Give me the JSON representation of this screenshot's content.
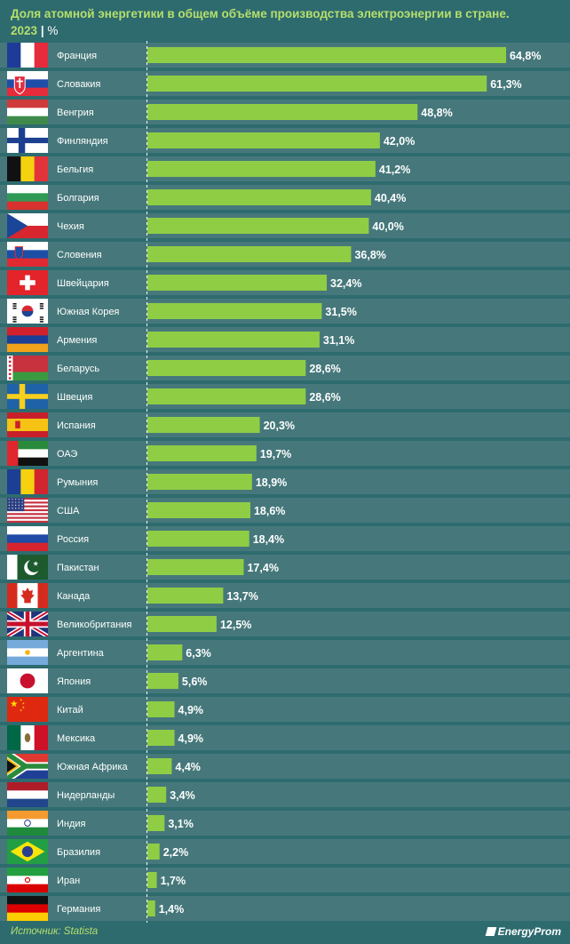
{
  "title": {
    "main": "Доля атомной энергетики в общем объёме производства электроэнергии в стране.",
    "year": "2023",
    "separator": "|",
    "unit": "%"
  },
  "source": "Источник: Statista",
  "logo": "EnergyProm",
  "colors": {
    "background": "#2e6b6f",
    "row_band": "#46787b",
    "bar": "#8fcd45",
    "title": "#b6df6b",
    "text": "#ffffff"
  },
  "chart_data": {
    "type": "bar",
    "orientation": "horizontal",
    "xlim": [
      0,
      70
    ],
    "categories": [
      "Франция",
      "Словакия",
      "Венгрия",
      "Финляндия",
      "Бельгия",
      "Болгария",
      "Чехия",
      "Словения",
      "Швейцария",
      "Южная Корея",
      "Армения",
      "Беларусь",
      "Швеция",
      "Испания",
      "ОАЭ",
      "Румыния",
      "США",
      "Россия",
      "Пакистан",
      "Канада",
      "Великобритания",
      "Аргентина",
      "Япония",
      "Китай",
      "Мексика",
      "Южная Африка",
      "Нидерланды",
      "Индия",
      "Бразилия",
      "Иран",
      "Германия"
    ],
    "values": [
      64.8,
      61.3,
      48.8,
      42.0,
      41.2,
      40.4,
      40.0,
      36.8,
      32.4,
      31.5,
      31.1,
      28.6,
      28.6,
      20.3,
      19.7,
      18.9,
      18.6,
      18.4,
      17.4,
      13.7,
      12.5,
      6.3,
      5.6,
      4.9,
      4.9,
      4.4,
      3.4,
      3.1,
      2.2,
      1.7,
      1.4
    ],
    "labels": [
      "64,8%",
      "61,3%",
      "48,8%",
      "42,0%",
      "41,2%",
      "40,4%",
      "40,0%",
      "36,8%",
      "32,4%",
      "31,5%",
      "31,1%",
      "28,6%",
      "28,6%",
      "20,3%",
      "19,7%",
      "18,9%",
      "18,6%",
      "18,4%",
      "17,4%",
      "13,7%",
      "12,5%",
      "6,3%",
      "5,6%",
      "4,9%",
      "4,9%",
      "4,4%",
      "3,4%",
      "3,1%",
      "2,2%",
      "1,7%",
      "1,4%"
    ],
    "flag_icons": [
      "france-flag-icon",
      "slovakia-flag-icon",
      "hungary-flag-icon",
      "finland-flag-icon",
      "belgium-flag-icon",
      "bulgaria-flag-icon",
      "czechia-flag-icon",
      "slovenia-flag-icon",
      "switzerland-flag-icon",
      "south-korea-flag-icon",
      "armenia-flag-icon",
      "belarus-flag-icon",
      "sweden-flag-icon",
      "spain-flag-icon",
      "uae-flag-icon",
      "romania-flag-icon",
      "usa-flag-icon",
      "russia-flag-icon",
      "pakistan-flag-icon",
      "canada-flag-icon",
      "uk-flag-icon",
      "argentina-flag-icon",
      "japan-flag-icon",
      "china-flag-icon",
      "mexico-flag-icon",
      "south-africa-flag-icon",
      "netherlands-flag-icon",
      "india-flag-icon",
      "brazil-flag-icon",
      "iran-flag-icon",
      "germany-flag-icon"
    ]
  }
}
